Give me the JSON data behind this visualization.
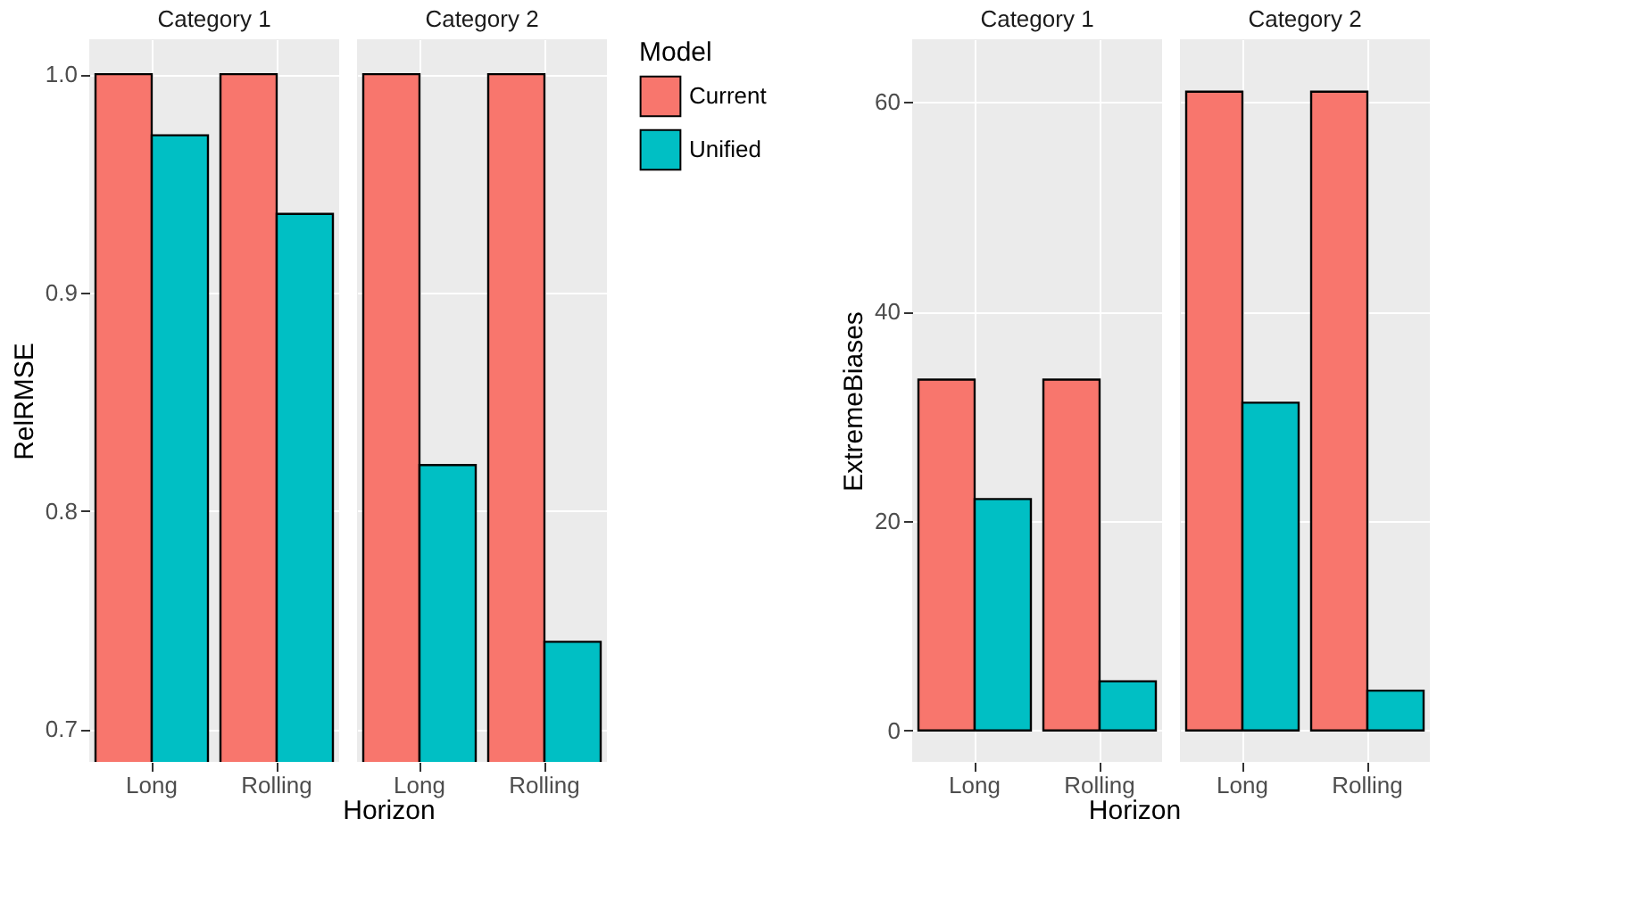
{
  "chart_data": [
    {
      "type": "bar",
      "title": "Category 1",
      "ylabel": "RelRMSE",
      "xlabel": "Horizon",
      "legend": "right",
      "legend_title": "Model",
      "categories": [
        "Long",
        "Rolling"
      ],
      "ylim": [
        0.685,
        1.016
      ],
      "yticks": [
        0.7,
        0.8,
        0.9,
        {
          "value": 1.0,
          "label": "1.0"
        }
      ],
      "grid": true,
      "series": [
        {
          "name": "Current",
          "color": "#f8766d",
          "values": [
            1.0,
            1.0
          ]
        },
        {
          "name": "Unified",
          "color": "#00bfc4",
          "values": [
            0.972,
            0.936
          ]
        }
      ]
    },
    {
      "type": "bar",
      "title": "Category 2",
      "categories": [
        "Long",
        "Rolling"
      ],
      "ylim": [
        0.685,
        1.016
      ],
      "yticks": [
        0.7,
        0.8,
        0.9,
        1.0
      ],
      "grid": true,
      "tick_labels": "x",
      "series": [
        {
          "color": "#f8766d",
          "values": [
            1.0,
            1.0
          ]
        },
        {
          "color": "#00bfc4",
          "values": [
            0.821,
            0.74
          ]
        }
      ]
    },
    {
      "type": "bar",
      "title": "Category 1",
      "ylabel": "ExtremeBiases",
      "xlabel": "Horizon",
      "categories": [
        "Long",
        "Rolling"
      ],
      "ylim": [
        -3,
        66
      ],
      "yticks": [
        0,
        20,
        40,
        60
      ],
      "grid": true,
      "series": [
        {
          "color": "#f8766d",
          "values": [
            33.5,
            33.5
          ]
        },
        {
          "color": "#00bfc4",
          "values": [
            22.1,
            4.7
          ]
        }
      ]
    },
    {
      "type": "bar",
      "title": "Category 2",
      "categories": [
        "Long",
        "Rolling"
      ],
      "ylim": [
        -3,
        66
      ],
      "yticks": [
        0,
        20,
        40,
        60
      ],
      "grid": true,
      "tick_labels": "x",
      "series": [
        {
          "color": "#f8766d",
          "values": [
            61.0,
            61.0
          ]
        },
        {
          "color": "#00bfc4",
          "values": [
            31.3,
            3.8
          ]
        }
      ]
    }
  ]
}
